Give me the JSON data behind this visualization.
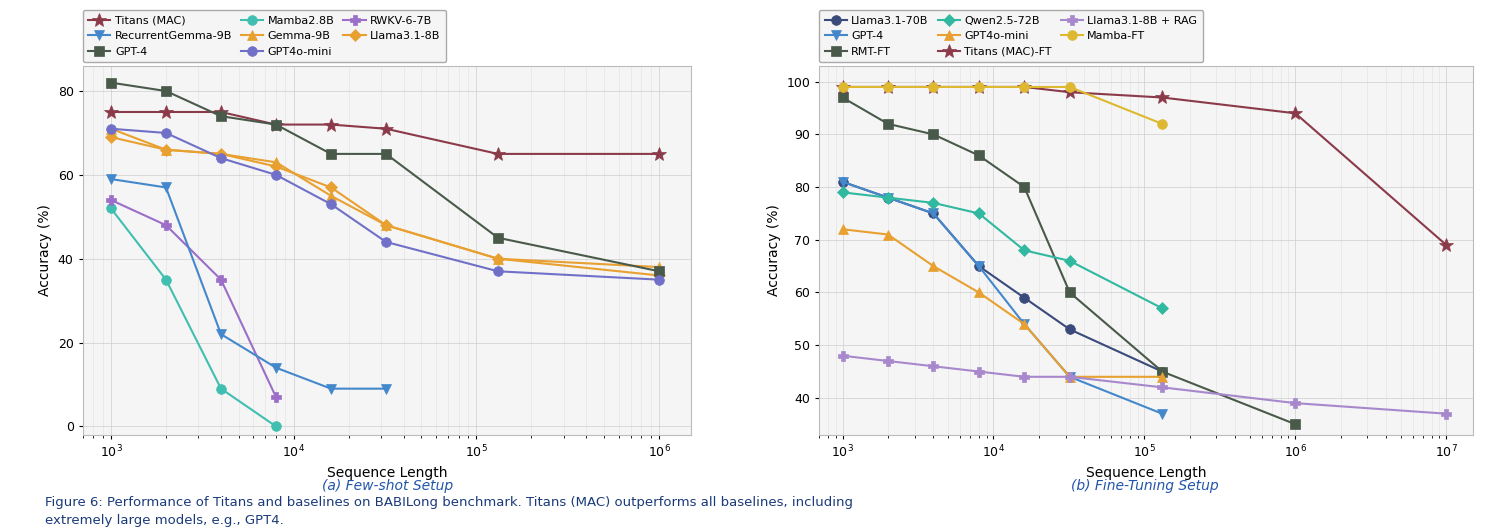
{
  "plot1": {
    "xlabel": "Sequence Length",
    "ylabel": "Accuracy (%)",
    "xlim": [
      700,
      1500000
    ],
    "ylim": [
      -2,
      86
    ],
    "yticks": [
      0,
      20,
      40,
      60,
      80
    ],
    "xticks": [
      1000,
      10000,
      100000,
      1000000
    ],
    "series": [
      {
        "label": "Titans (MAC)",
        "color": "#8B3A4A",
        "marker": "*",
        "markersize": 10,
        "linewidth": 1.5,
        "x": [
          1000,
          2000,
          4000,
          8000,
          16000,
          32000,
          131072,
          1000000
        ],
        "y": [
          75,
          75,
          75,
          72,
          72,
          71,
          65,
          65
        ]
      },
      {
        "label": "Mamba2.8B",
        "color": "#40BFB0",
        "marker": "o",
        "markersize": 7,
        "linewidth": 1.5,
        "x": [
          1000,
          2000,
          4000,
          8000
        ],
        "y": [
          52,
          35,
          9,
          0
        ]
      },
      {
        "label": "RWKV-6-7B",
        "color": "#9B6EC8",
        "marker": "P",
        "markersize": 7,
        "linewidth": 1.5,
        "x": [
          1000,
          2000,
          4000,
          8000
        ],
        "y": [
          54,
          48,
          35,
          7
        ]
      },
      {
        "label": "RecurrentGemma-9B",
        "color": "#4488CC",
        "marker": "v",
        "markersize": 7,
        "linewidth": 1.5,
        "x": [
          1000,
          2000,
          4000,
          8000,
          16000,
          32000
        ],
        "y": [
          59,
          57,
          22,
          14,
          9,
          9
        ]
      },
      {
        "label": "Gemma-9B",
        "color": "#E8A030",
        "marker": "^",
        "markersize": 7,
        "linewidth": 1.5,
        "x": [
          1000,
          2000,
          4000,
          8000,
          16000,
          32000,
          131072,
          1000000
        ],
        "y": [
          71,
          66,
          65,
          63,
          55,
          48,
          40,
          38
        ]
      },
      {
        "label": "Llama3.1-8B",
        "color": "#E8A030",
        "marker": "D",
        "markersize": 6,
        "linewidth": 1.5,
        "x": [
          1000,
          2000,
          4000,
          8000,
          16000,
          32000,
          131072,
          1000000
        ],
        "y": [
          69,
          66,
          65,
          62,
          57,
          48,
          40,
          36
        ]
      },
      {
        "label": "GPT-4",
        "color": "#4A5A4A",
        "marker": "s",
        "markersize": 7,
        "linewidth": 1.5,
        "x": [
          1000,
          2000,
          4000,
          8000,
          16000,
          32000,
          131072,
          1000000
        ],
        "y": [
          82,
          80,
          74,
          72,
          65,
          65,
          45,
          37
        ]
      },
      {
        "label": "GPT4o-mini",
        "color": "#7070C8",
        "marker": "o",
        "markersize": 7,
        "linewidth": 1.5,
        "x": [
          1000,
          2000,
          4000,
          8000,
          16000,
          32000,
          131072,
          1000000
        ],
        "y": [
          71,
          70,
          64,
          60,
          53,
          44,
          37,
          35
        ]
      }
    ],
    "legend_order": [
      0,
      3,
      6,
      1,
      4,
      7,
      2,
      5
    ]
  },
  "plot2": {
    "xlabel": "Sequence Length",
    "ylabel": "Accuracy (%)",
    "xlim": [
      700,
      15000000
    ],
    "ylim": [
      33,
      103
    ],
    "yticks": [
      40,
      50,
      60,
      70,
      80,
      90,
      100
    ],
    "xticks": [
      1000,
      10000,
      100000,
      1000000,
      10000000
    ],
    "series": [
      {
        "label": "Llama3.1-70B",
        "color": "#3A4A7A",
        "marker": "o",
        "markersize": 7,
        "linewidth": 1.5,
        "x": [
          1000,
          2000,
          4000,
          8000,
          16000,
          32000,
          131072
        ],
        "y": [
          81,
          78,
          75,
          65,
          59,
          53,
          45
        ]
      },
      {
        "label": "GPT-4",
        "color": "#4488CC",
        "marker": "v",
        "markersize": 7,
        "linewidth": 1.5,
        "x": [
          1000,
          2000,
          4000,
          8000,
          16000,
          32000,
          131072
        ],
        "y": [
          81,
          78,
          75,
          65,
          54,
          44,
          37
        ]
      },
      {
        "label": "RMT-FT",
        "color": "#4A5A4A",
        "marker": "s",
        "markersize": 7,
        "linewidth": 1.5,
        "x": [
          1000,
          2000,
          4000,
          8000,
          16000,
          32000,
          131072,
          1000000
        ],
        "y": [
          97,
          92,
          90,
          86,
          80,
          60,
          45,
          35
        ]
      },
      {
        "label": "Qwen2.5-72B",
        "color": "#30B8A0",
        "marker": "D",
        "markersize": 6,
        "linewidth": 1.5,
        "x": [
          1000,
          2000,
          4000,
          8000,
          16000,
          32000,
          131072
        ],
        "y": [
          79,
          78,
          77,
          75,
          68,
          66,
          57
        ]
      },
      {
        "label": "GPT4o-mini",
        "color": "#E8A030",
        "marker": "^",
        "markersize": 7,
        "linewidth": 1.5,
        "x": [
          1000,
          2000,
          4000,
          8000,
          16000,
          32000,
          131072
        ],
        "y": [
          72,
          71,
          65,
          60,
          54,
          44,
          44
        ]
      },
      {
        "label": "Titans (MAC)-FT",
        "color": "#8B3A4A",
        "marker": "*",
        "markersize": 10,
        "linewidth": 1.5,
        "x": [
          1000,
          2000,
          4000,
          8000,
          16000,
          32000,
          131072,
          1000000,
          10000000
        ],
        "y": [
          99,
          99,
          99,
          99,
          99,
          98,
          97,
          94,
          69
        ]
      },
      {
        "label": "Llama3.1-8B + RAG",
        "color": "#A888CC",
        "marker": "P",
        "markersize": 7,
        "linewidth": 1.5,
        "x": [
          1000,
          2000,
          4000,
          8000,
          16000,
          32000,
          131072,
          1000000,
          10000000
        ],
        "y": [
          48,
          47,
          46,
          45,
          44,
          44,
          42,
          39,
          37
        ]
      },
      {
        "label": "Mamba-FT",
        "color": "#DDB830",
        "marker": "o",
        "markersize": 7,
        "linewidth": 1.5,
        "x": [
          1000,
          2000,
          4000,
          8000,
          16000,
          32000,
          131072
        ],
        "y": [
          99,
          99,
          99,
          99,
          99,
          99,
          92
        ]
      }
    ],
    "legend_order": [
      0,
      1,
      2,
      3,
      4,
      5,
      6,
      7
    ]
  },
  "caption": "Figure 6: Performance of Titans and baselines on BABILong benchmark. Titans (MAC) outperforms all baselines, including\nextremely large models, e.g., GPT4.",
  "bg_color": "#FFFFFF",
  "grid_color": "#CCCCCC",
  "caption_color": "#1A3A7A"
}
